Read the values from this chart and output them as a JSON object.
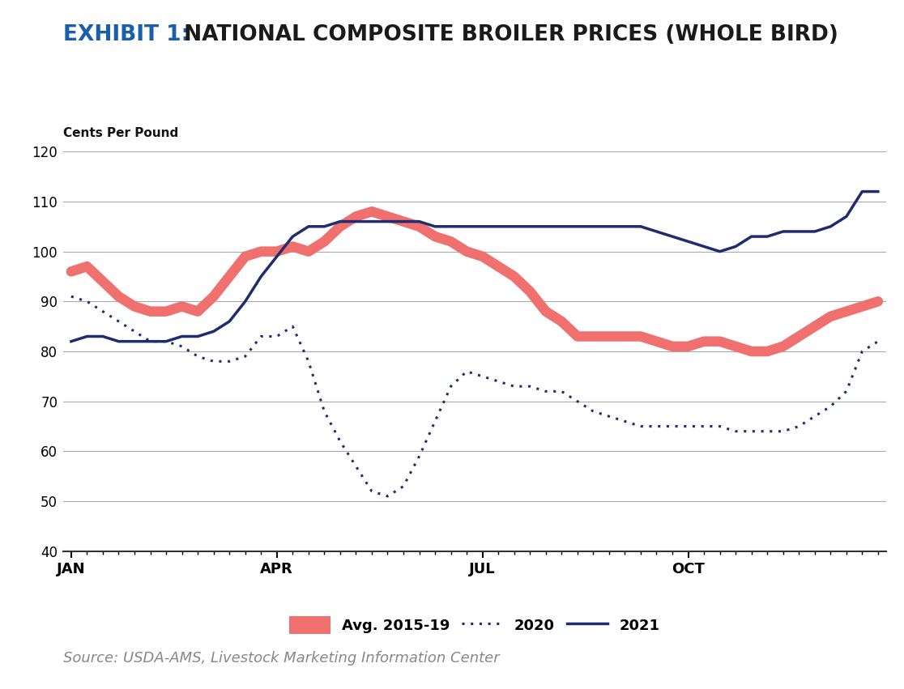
{
  "title_exhibit": "EXHIBIT 1:",
  "title_main": " NATIONAL COMPOSITE BROILER PRICES (WHOLE BIRD)",
  "ylabel": "Cents Per Pound",
  "source": "Source: USDA-AMS, Livestock Marketing Information Center",
  "exhibit_color": "#1a5fa8",
  "title_color": "#1a1a1a",
  "ylim": [
    40,
    120
  ],
  "yticks": [
    40,
    50,
    60,
    70,
    80,
    90,
    100,
    110,
    120
  ],
  "xtick_labels": [
    "JAN",
    "APR",
    "JUL",
    "OCT"
  ],
  "background_color": "#ffffff",
  "grid_color": "#aaaaaa",
  "avg_color": "#f07070",
  "color_2020": "#1f2d6e",
  "color_2021": "#1f2d6e",
  "avg_x": [
    0,
    1,
    2,
    3,
    4,
    5,
    6,
    7,
    8,
    9,
    10,
    11,
    12,
    13,
    14,
    15,
    16,
    17,
    18,
    19,
    20,
    21,
    22,
    23,
    24,
    25,
    26,
    27,
    28,
    29,
    30,
    31,
    32,
    33,
    34,
    35,
    36,
    37,
    38,
    39,
    40,
    41,
    42,
    43,
    44,
    45,
    46,
    47,
    48,
    49,
    50,
    51
  ],
  "avg_y": [
    96,
    97,
    94,
    91,
    89,
    88,
    88,
    89,
    88,
    91,
    95,
    99,
    100,
    100,
    101,
    100,
    102,
    105,
    107,
    108,
    107,
    106,
    105,
    103,
    102,
    100,
    99,
    97,
    95,
    92,
    88,
    86,
    83,
    83,
    83,
    83,
    83,
    82,
    81,
    81,
    82,
    82,
    81,
    80,
    80,
    81,
    83,
    85,
    87,
    88,
    89,
    90
  ],
  "y2020_x": [
    0,
    1,
    2,
    3,
    4,
    5,
    6,
    7,
    8,
    9,
    10,
    11,
    12,
    13,
    14,
    15,
    16,
    17,
    18,
    19,
    20,
    21,
    22,
    23,
    24,
    25,
    26,
    27,
    28,
    29,
    30,
    31,
    32,
    33,
    34,
    35,
    36,
    37,
    38,
    39,
    40,
    41,
    42,
    43,
    44,
    45,
    46,
    47,
    48,
    49,
    50,
    51
  ],
  "y2020_y": [
    91,
    90,
    88,
    86,
    84,
    82,
    82,
    81,
    79,
    78,
    78,
    79,
    83,
    83,
    85,
    78,
    68,
    62,
    57,
    52,
    51,
    53,
    59,
    66,
    73,
    76,
    75,
    74,
    73,
    73,
    72,
    72,
    70,
    68,
    67,
    66,
    65,
    65,
    65,
    65,
    65,
    65,
    64,
    64,
    64,
    64,
    65,
    67,
    69,
    72,
    80,
    82
  ],
  "y2021_x": [
    0,
    1,
    2,
    3,
    4,
    5,
    6,
    7,
    8,
    9,
    10,
    11,
    12,
    13,
    14,
    15,
    16,
    17,
    18,
    19,
    20,
    21,
    22,
    23,
    24,
    25,
    26,
    27,
    28,
    29,
    30,
    31,
    32,
    33,
    34,
    35,
    36,
    37,
    38,
    39,
    40,
    41,
    42,
    43,
    44,
    45,
    46,
    47,
    48,
    49,
    50,
    51
  ],
  "y2021_y": [
    82,
    83,
    83,
    82,
    82,
    82,
    82,
    83,
    83,
    84,
    86,
    90,
    95,
    99,
    103,
    105,
    105,
    106,
    106,
    106,
    106,
    106,
    106,
    105,
    105,
    105,
    105,
    105,
    105,
    105,
    105,
    105,
    105,
    105,
    105,
    105,
    105,
    104,
    103,
    102,
    101,
    100,
    101,
    103,
    103,
    104,
    104,
    104,
    105,
    107,
    112,
    112
  ],
  "legend_avg": "Avg. 2015-19",
  "legend_2020": "2020",
  "legend_2021": "2021"
}
